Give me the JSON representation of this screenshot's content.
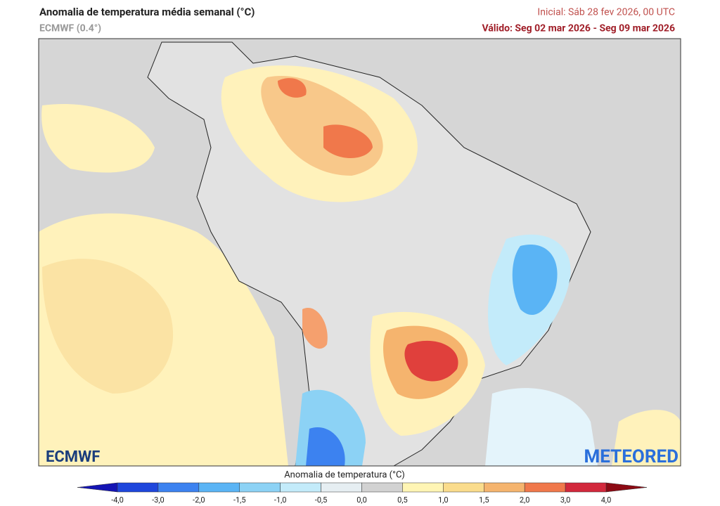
{
  "header": {
    "title": "Anomalia de temperatura média semanal (°C)",
    "model": "ECMWF (0.4°)",
    "initial": "Inicial: Sáb 28 fev 2026, 00 UTC",
    "valid": "Válido: Seg 02 mar 2026 - Seg 09 mar 2026"
  },
  "legend": {
    "title": "Anomalia de temperatura (°C)",
    "ticks": [
      "-4,0",
      "-3,0",
      "-2,0",
      "-1,5",
      "-1,0",
      "-0,5",
      "0,0",
      "0,5",
      "1,0",
      "1,5",
      "2,0",
      "3,0",
      "4,0"
    ],
    "low_color": "#1414b4",
    "high_color": "#8c0a14",
    "colors": [
      "#1e46dc",
      "#3c82f0",
      "#5ab4f5",
      "#8cd2f5",
      "#c3ebfa",
      "#e6eef2",
      "#d2d2d2",
      "#fff5b4",
      "#fadc8c",
      "#f5b46e",
      "#f0784b",
      "#d2283c"
    ]
  },
  "logos": {
    "left": "ECMWF",
    "right": "METEORED"
  }
}
